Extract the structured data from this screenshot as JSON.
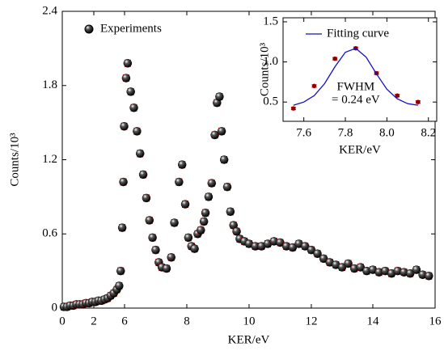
{
  "chart_data": [
    {
      "type": "scatter",
      "xlabel": "KER/eV",
      "ylabel": "Counts/10³",
      "xlim": [
        0,
        16
      ],
      "ylim": [
        0,
        2.4
      ],
      "xticks": [
        0,
        2,
        6,
        8,
        10,
        12,
        14,
        16
      ],
      "yticks": [
        0,
        0.6,
        1.2,
        1.8,
        2.4
      ],
      "legend": "upper left",
      "series": [
        {
          "name": "Experiments",
          "color": "#000000",
          "error_color": "#e00000",
          "error": 0.025,
          "x": [
            0.1,
            0.3,
            0.5,
            0.7,
            0.9,
            1.1,
            1.3,
            1.5,
            1.7,
            1.9,
            2.2,
            2.6,
            3.0,
            3.4,
            3.8,
            4.2,
            4.6,
            5.0,
            5.3,
            5.5,
            5.7,
            5.85,
            5.95,
            6.05,
            6.1,
            6.2,
            6.3,
            6.4,
            6.5,
            6.6,
            6.7,
            6.8,
            6.9,
            7.0,
            7.1,
            7.2,
            7.35,
            7.5,
            7.6,
            7.75,
            7.85,
            7.95,
            8.05,
            8.15,
            8.25,
            8.35,
            8.45,
            8.55,
            8.6,
            8.7,
            8.8,
            8.9,
            8.97,
            9.05,
            9.12,
            9.2,
            9.3,
            9.4,
            9.5,
            9.6,
            9.7,
            9.85,
            10.0,
            10.2,
            10.4,
            10.6,
            10.8,
            11.0,
            11.2,
            11.4,
            11.6,
            11.8,
            12.0,
            12.2,
            12.4,
            12.6,
            12.8,
            13.0,
            13.2,
            13.4,
            13.6,
            13.8,
            14.0,
            14.2,
            14.4,
            14.6,
            14.8,
            15.0,
            15.2,
            15.4,
            15.6,
            15.8
          ],
          "values": [
            0.01,
            0.01,
            0.02,
            0.02,
            0.03,
            0.03,
            0.03,
            0.04,
            0.04,
            0.05,
            0.05,
            0.06,
            0.06,
            0.07,
            0.08,
            0.1,
            0.12,
            0.15,
            0.18,
            0.3,
            0.65,
            1.02,
            1.47,
            1.86,
            1.98,
            1.75,
            1.62,
            1.43,
            1.25,
            1.08,
            0.89,
            0.71,
            0.57,
            0.47,
            0.37,
            0.33,
            0.32,
            0.41,
            0.69,
            1.02,
            1.16,
            0.84,
            0.57,
            0.5,
            0.48,
            0.6,
            0.63,
            0.7,
            0.77,
            0.9,
            1.01,
            1.4,
            1.66,
            1.71,
            1.43,
            1.2,
            0.98,
            0.78,
            0.67,
            0.62,
            0.56,
            0.54,
            0.52,
            0.5,
            0.5,
            0.52,
            0.54,
            0.53,
            0.5,
            0.49,
            0.52,
            0.5,
            0.47,
            0.44,
            0.4,
            0.37,
            0.35,
            0.33,
            0.36,
            0.32,
            0.33,
            0.3,
            0.31,
            0.29,
            0.3,
            0.28,
            0.3,
            0.29,
            0.28,
            0.31,
            0.27,
            0.26
          ]
        }
      ]
    },
    {
      "type": "scatter",
      "xlabel": "KER/eV",
      "ylabel": "Counts/10³",
      "xlim": [
        7.5,
        8.24
      ],
      "ylim": [
        0.26,
        1.55
      ],
      "xticks": [
        7.6,
        7.8,
        {
          "value": 8.0,
          "label": "8.0"
        },
        8.2
      ],
      "yticks": [
        0.5,
        {
          "value": 1.0,
          "label": "1.0"
        },
        1.5
      ],
      "annotation": [
        "FWHM",
        "= 0.24 eV"
      ],
      "legend": "upper right",
      "series": [
        {
          "color": "#8b0000",
          "error_color": "#e00000",
          "error": 0.015,
          "x": [
            7.55,
            7.65,
            7.75,
            7.85,
            7.95,
            8.05,
            8.15
          ],
          "values": [
            0.42,
            0.7,
            1.04,
            1.17,
            0.86,
            0.58,
            0.5
          ]
        },
        {
          "name": "Fitting curve",
          "type": "line",
          "color": "#1010c8",
          "x": [
            7.55,
            7.6,
            7.65,
            7.7,
            7.75,
            7.8,
            7.85,
            7.9,
            7.95,
            8.0,
            8.05,
            8.1,
            8.15
          ],
          "values": [
            0.46,
            0.5,
            0.58,
            0.73,
            0.94,
            1.12,
            1.17,
            1.06,
            0.85,
            0.66,
            0.54,
            0.48,
            0.46
          ]
        }
      ]
    }
  ]
}
